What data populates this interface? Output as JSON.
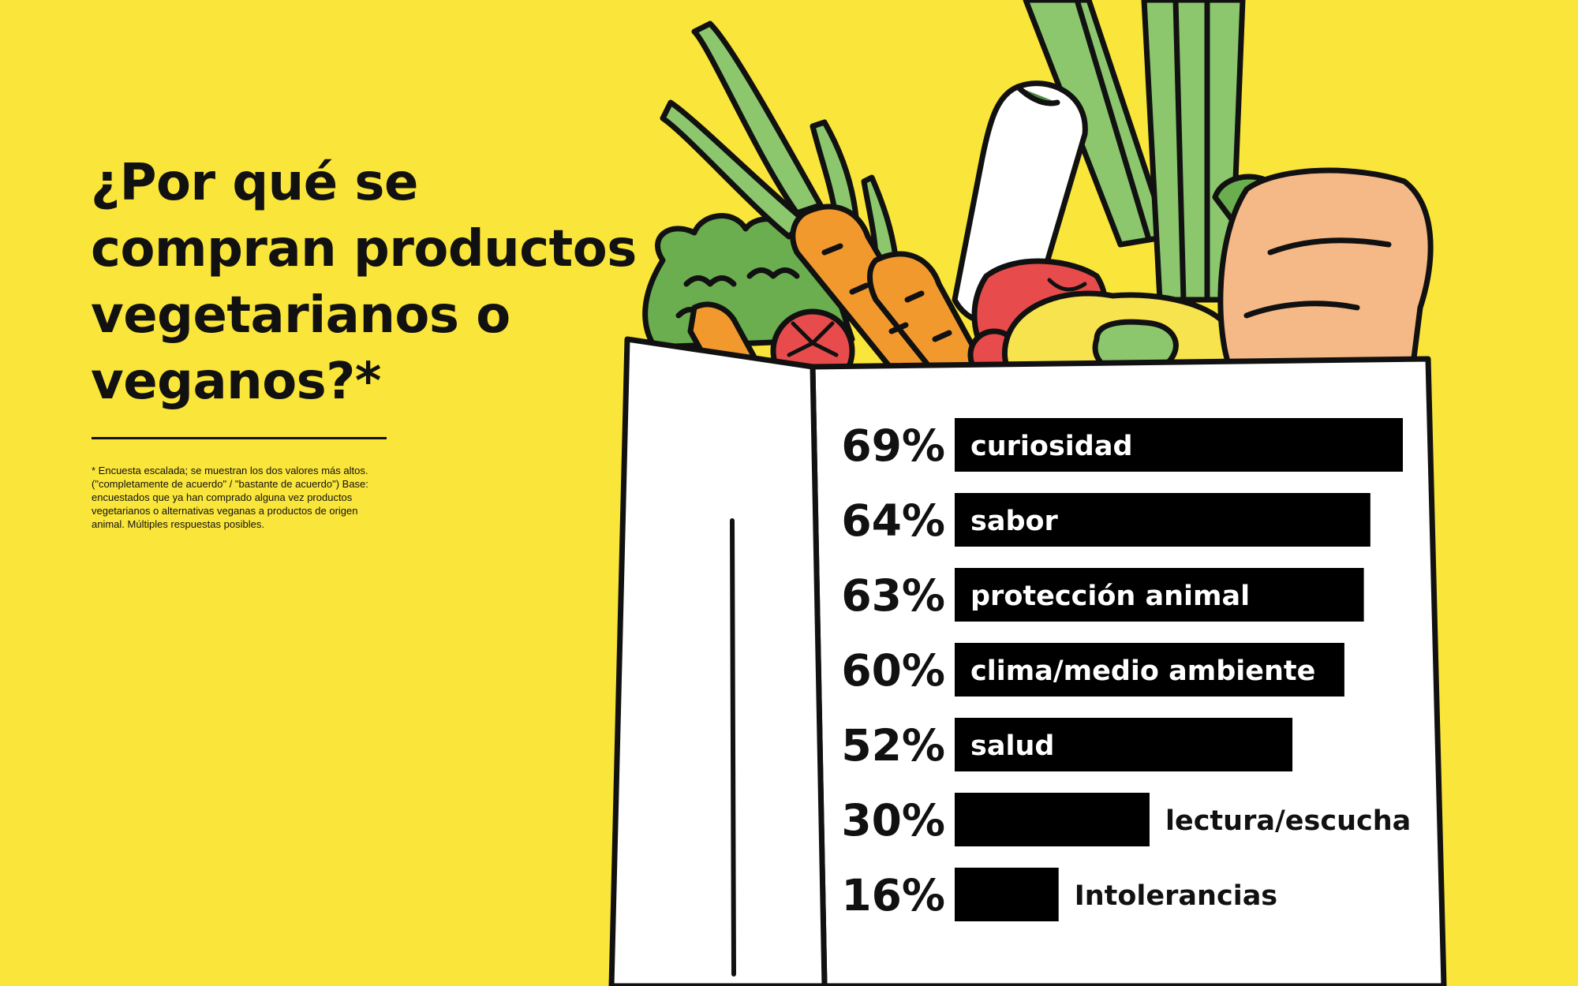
{
  "title": "¿Por qué se compran productos vegetarianos o veganos?*",
  "footnote": "* Encuesta escalada; se muestran los dos valores más altos. (\"completamente de acuerdo\" / \"bastante de acuerdo\") Base: encuestados que ya han comprado alguna vez productos vegetarianos o alternativas veganas a productos de origen animal. Múltiples respuestas posibles.",
  "colors": {
    "background": "#FAE53A",
    "bar": "#000000",
    "bag": "#FFFFFF",
    "outline": "#111111"
  },
  "chart_data": {
    "type": "bar",
    "orientation": "horizontal",
    "categories": [
      "curiosidad",
      "sabor",
      "protección animal",
      "clima/medio ambiente",
      "salud",
      "lectura/escucha",
      "Intolerancias"
    ],
    "values": [
      69,
      64,
      63,
      60,
      52,
      30,
      16
    ],
    "value_labels": [
      "69%",
      "64%",
      "63%",
      "60%",
      "52%",
      "30%",
      "16%"
    ],
    "unit": "%",
    "title": "",
    "xlabel": "",
    "ylabel": "",
    "grid": false,
    "legend": "none"
  }
}
